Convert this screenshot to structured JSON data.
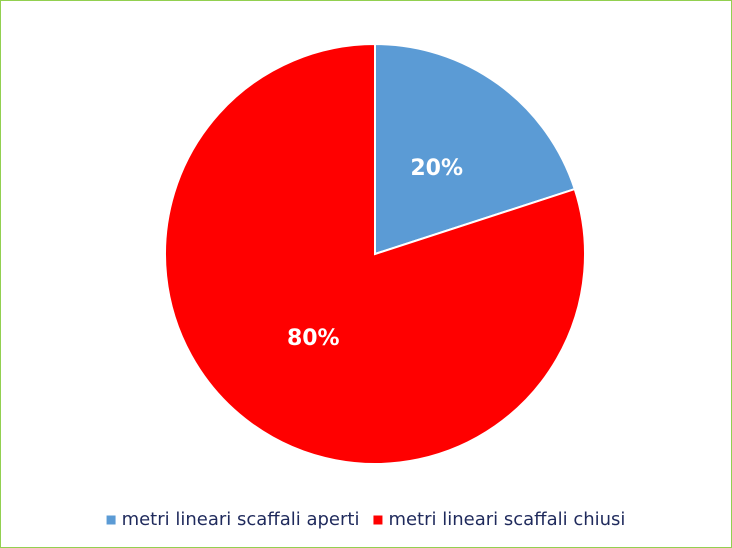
{
  "chart_data": {
    "type": "pie",
    "categories": [
      "metri lineari scaffali aperti",
      "metri lineari scaffali chiusi"
    ],
    "values": [
      20,
      80
    ],
    "value_labels": [
      "20%",
      "80%"
    ],
    "colors": [
      "#5b9bd5",
      "#ff0000"
    ],
    "legend": "bottom"
  }
}
